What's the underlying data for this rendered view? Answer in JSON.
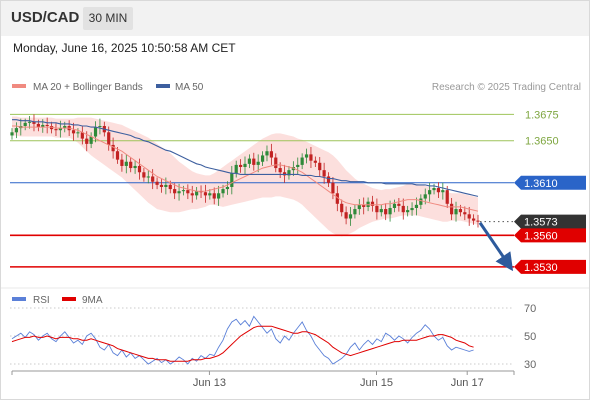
{
  "header": {
    "pair": "USD/CAD",
    "timeframe": "30 MIN"
  },
  "timestamp": "Monday, June 16, 2025 10:50:58 AM CET",
  "chart_data": [
    {
      "type": "candlestick",
      "legend": [
        {
          "label": "MA 20 + Bollinger Bands",
          "color": "#f08a80"
        },
        {
          "label": "MA 50",
          "color": "#3d5f9f"
        }
      ],
      "legend_position": "top-left",
      "source": "Research © 2025 Trading Central",
      "y_range": [
        1.3508,
        1.3703
      ],
      "x_labels": [
        "Jun 13",
        "Jun 15",
        "Jun 17"
      ],
      "horizontal_levels": [
        {
          "value": 1.3675,
          "label": "1.3675",
          "color": "#9ec45a",
          "style": "line"
        },
        {
          "value": 1.365,
          "label": "1.3650",
          "color": "#9ec45a",
          "style": "line"
        },
        {
          "value": 1.361,
          "label": "1.3610",
          "color": "#2a64c8",
          "style": "badge"
        },
        {
          "value": 1.3573,
          "label": "1.3573",
          "color": "#333333",
          "style": "badge"
        },
        {
          "value": 1.356,
          "label": "1.3560",
          "color": "#e00000",
          "style": "badge"
        },
        {
          "value": 1.353,
          "label": "1.3530",
          "color": "#e00000",
          "style": "badge"
        }
      ],
      "current_price": 1.3573,
      "forecast_arrow": {
        "from": 1.3572,
        "to": 1.3533,
        "direction": "down",
        "color": "#2d5a9c"
      },
      "close": [
        1.3658,
        1.3662,
        1.3664,
        1.3667,
        1.3668,
        1.3666,
        1.3663,
        1.3665,
        1.3664,
        1.3661,
        1.366,
        1.3662,
        1.3664,
        1.366,
        1.3657,
        1.3658,
        1.3652,
        1.3647,
        1.3654,
        1.3663,
        1.3664,
        1.3658,
        1.3646,
        1.364,
        1.3632,
        1.3626,
        1.363,
        1.3624,
        1.3626,
        1.362,
        1.3615,
        1.3616,
        1.3611,
        1.3608,
        1.3606,
        1.3608,
        1.3604,
        1.36,
        1.3602,
        1.3603,
        1.36,
        1.3598,
        1.3602,
        1.3601,
        1.3598,
        1.36,
        1.3595,
        1.36,
        1.3604,
        1.3606,
        1.3619,
        1.3627,
        1.3625,
        1.3628,
        1.3633,
        1.3627,
        1.363,
        1.3636,
        1.364,
        1.3634,
        1.3624,
        1.362,
        1.3617,
        1.3622,
        1.3625,
        1.3627,
        1.3634,
        1.3637,
        1.3631,
        1.3629,
        1.3622,
        1.3616,
        1.361,
        1.36,
        1.359,
        1.3582,
        1.3576,
        1.358,
        1.3585,
        1.3589,
        1.3587,
        1.3592,
        1.3588,
        1.3582,
        1.3585,
        1.358,
        1.3586,
        1.359,
        1.3588,
        1.3582,
        1.3584,
        1.3586,
        1.3589,
        1.3595,
        1.3599,
        1.3603,
        1.3605,
        1.3601,
        1.3603,
        1.359,
        1.358,
        1.3585,
        1.3582,
        1.358,
        1.3576,
        1.3574,
        1.3573
      ],
      "ma20": [
        1.3664,
        1.3664,
        1.3663,
        1.3663,
        1.3663,
        1.3663,
        1.3663,
        1.3663,
        1.3663,
        1.3663,
        1.3662,
        1.3662,
        1.3662,
        1.3662,
        1.3661,
        1.366,
        1.3658,
        1.3656,
        1.3654,
        1.3652,
        1.365,
        1.3648,
        1.3646,
        1.3644,
        1.3642,
        1.364,
        1.3637,
        1.3634,
        1.3631,
        1.3628,
        1.3625,
        1.3622,
        1.3619,
        1.3616,
        1.3614,
        1.3612,
        1.361,
        1.3608,
        1.3606,
        1.3605,
        1.3604,
        1.3603,
        1.3602,
        1.3602,
        1.3602,
        1.3603,
        1.3604,
        1.3605,
        1.3606,
        1.3608,
        1.361,
        1.3612,
        1.3614,
        1.3616,
        1.3618,
        1.362,
        1.3622,
        1.3624,
        1.3625,
        1.3626,
        1.3627,
        1.3627,
        1.3626,
        1.3625,
        1.3624,
        1.3622,
        1.362,
        1.3617,
        1.3614,
        1.3611,
        1.3608,
        1.3605,
        1.3602,
        1.3599,
        1.3596,
        1.3593,
        1.3591,
        1.359,
        1.3589,
        1.3589,
        1.3589,
        1.3589,
        1.3589,
        1.3589,
        1.3589,
        1.359,
        1.359,
        1.3591,
        1.3592,
        1.3593,
        1.3594,
        1.3594,
        1.3594,
        1.3593,
        1.3592,
        1.3591,
        1.359,
        1.3589,
        1.3588,
        1.3587,
        1.3587,
        1.3587,
        1.3587,
        1.3586,
        1.3585,
        1.3584,
        1.3583
      ],
      "ma50": [
        1.367,
        1.367,
        1.3669,
        1.3669,
        1.3669,
        1.3668,
        1.3668,
        1.3668,
        1.3667,
        1.3667,
        1.3667,
        1.3666,
        1.3666,
        1.3666,
        1.3665,
        1.3665,
        1.3664,
        1.3664,
        1.3663,
        1.3663,
        1.3662,
        1.3661,
        1.366,
        1.3659,
        1.3658,
        1.3657,
        1.3656,
        1.3655,
        1.3653,
        1.3652,
        1.365,
        1.3649,
        1.3647,
        1.3645,
        1.3643,
        1.3641,
        1.364,
        1.3638,
        1.3636,
        1.3634,
        1.3632,
        1.363,
        1.3628,
        1.3627,
        1.3625,
        1.3624,
        1.3623,
        1.3622,
        1.3621,
        1.362,
        1.3619,
        1.3619,
        1.3618,
        1.3618,
        1.3618,
        1.3618,
        1.3618,
        1.3618,
        1.3618,
        1.3618,
        1.3618,
        1.3618,
        1.3618,
        1.3618,
        1.3618,
        1.3618,
        1.3617,
        1.3617,
        1.3617,
        1.3616,
        1.3616,
        1.3615,
        1.3614,
        1.3614,
        1.3613,
        1.3612,
        1.3612,
        1.3611,
        1.3611,
        1.3611,
        1.3611,
        1.361,
        1.361,
        1.361,
        1.361,
        1.3609,
        1.3609,
        1.3609,
        1.3609,
        1.3609,
        1.3609,
        1.3609,
        1.3608,
        1.3608,
        1.3608,
        1.3607,
        1.3607,
        1.3606,
        1.3605,
        1.3604,
        1.3603,
        1.3602,
        1.3601,
        1.36,
        1.3599,
        1.3598,
        1.3597
      ],
      "bb_width": [
        0.0009,
        0.0009,
        0.0009,
        0.0009,
        0.0009,
        0.0009,
        0.0009,
        0.0009,
        0.0009,
        0.0009,
        0.0009,
        0.0009,
        0.0009,
        0.0009,
        0.001,
        0.0012,
        0.0014,
        0.0016,
        0.0018,
        0.0019,
        0.002,
        0.0021,
        0.0022,
        0.0023,
        0.0024,
        0.0025,
        0.0026,
        0.0027,
        0.0028,
        0.0029,
        0.003,
        0.0031,
        0.0031,
        0.0031,
        0.003,
        0.0029,
        0.0028,
        0.0026,
        0.0024,
        0.0022,
        0.002,
        0.0018,
        0.0017,
        0.0016,
        0.0015,
        0.0014,
        0.0015,
        0.0017,
        0.0019,
        0.002,
        0.0021,
        0.0022,
        0.0023,
        0.0024,
        0.0025,
        0.0026,
        0.0027,
        0.0028,
        0.0029,
        0.003,
        0.003,
        0.003,
        0.003,
        0.003,
        0.003,
        0.003,
        0.0031,
        0.0032,
        0.0033,
        0.0034,
        0.0035,
        0.0036,
        0.0037,
        0.0037,
        0.0036,
        0.0034,
        0.0031,
        0.0028,
        0.0025,
        0.0022,
        0.002,
        0.0018,
        0.0016,
        0.0015,
        0.0014,
        0.0014,
        0.0014,
        0.0014,
        0.0014,
        0.0014,
        0.0015,
        0.0015,
        0.0015,
        0.0015,
        0.0015,
        0.0015,
        0.0015,
        0.0015,
        0.0015,
        0.0014,
        0.0013,
        0.0013,
        0.0013,
        0.0013,
        0.0013,
        0.0013,
        0.0013
      ]
    },
    {
      "type": "line",
      "legend": [
        {
          "label": "RSI",
          "color": "#5b80d8"
        },
        {
          "label": "9MA",
          "color": "#e00000"
        }
      ],
      "y_ticks": [
        70,
        50,
        30
      ],
      "y_range": [
        25,
        75
      ],
      "rsi": [
        48,
        50,
        52,
        49,
        53,
        51,
        47,
        50,
        52,
        48,
        46,
        50,
        53,
        49,
        45,
        47,
        44,
        50,
        52,
        48,
        42,
        40,
        44,
        38,
        36,
        40,
        35,
        38,
        34,
        36,
        33,
        30,
        32,
        34,
        31,
        33,
        30,
        32,
        35,
        33,
        30,
        34,
        32,
        36,
        34,
        37,
        36,
        42,
        47,
        55,
        60,
        62,
        58,
        61,
        57,
        64,
        60,
        56,
        52,
        55,
        48,
        45,
        50,
        47,
        52,
        56,
        60,
        54,
        50,
        44,
        40,
        36,
        34,
        30,
        32,
        34,
        37,
        42,
        45,
        40,
        44,
        47,
        44,
        48,
        46,
        52,
        50,
        47,
        50,
        48,
        45,
        49,
        52,
        54,
        58,
        55,
        50,
        47,
        49,
        43,
        40,
        42,
        41,
        40,
        39,
        40
      ],
      "ma9": [
        46,
        47,
        48,
        49,
        49,
        50,
        49,
        49,
        50,
        49,
        48,
        49,
        49,
        49,
        48,
        48,
        47,
        47,
        48,
        47,
        46,
        45,
        44,
        43,
        41,
        40,
        39,
        38,
        37,
        36,
        35,
        34,
        34,
        33,
        33,
        33,
        32,
        32,
        32,
        32,
        32,
        33,
        33,
        33,
        34,
        34,
        35,
        36,
        38,
        41,
        44,
        47,
        50,
        52,
        54,
        56,
        57,
        57,
        57,
        57,
        56,
        55,
        54,
        53,
        52,
        52,
        53,
        53,
        52,
        51,
        49,
        47,
        45,
        42,
        40,
        38,
        37,
        36,
        37,
        38,
        39,
        40,
        41,
        42,
        43,
        44,
        45,
        46,
        46,
        47,
        47,
        47,
        47,
        48,
        49,
        50,
        50,
        51,
        51,
        50,
        49,
        47,
        46,
        45,
        43,
        42
      ]
    }
  ]
}
